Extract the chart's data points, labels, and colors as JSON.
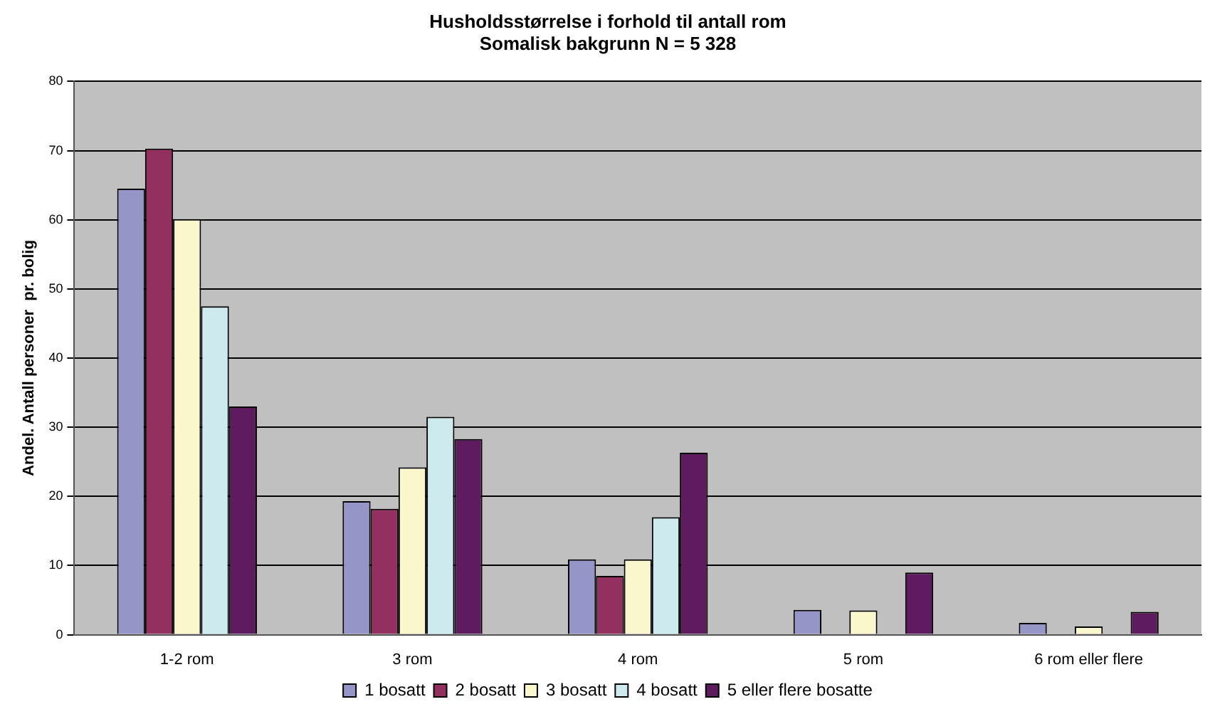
{
  "chart_data": {
    "type": "bar",
    "title": "Husholdsstørrelse i forhold til antall rom",
    "subtitle": "Somalisk bakgrunn N = 5 328",
    "ylabel": "Andel. Antall personer  pr. bolig",
    "categories": [
      "1-2 rom",
      "3 rom",
      "4 rom",
      "5 rom",
      "6 rom eller flere"
    ],
    "series": [
      {
        "name": "1 bosatt",
        "color": "#9595c8",
        "values": [
          64.5,
          19.3,
          10.9,
          3.6,
          1.7
        ]
      },
      {
        "name": "2 bosatt",
        "color": "#933060",
        "values": [
          70.3,
          18.2,
          8.5,
          0,
          0
        ]
      },
      {
        "name": "3 bosatt",
        "color": "#fbf7cd",
        "values": [
          60.1,
          24.2,
          10.9,
          3.5,
          1.2
        ]
      },
      {
        "name": "4 bosatt",
        "color": "#cdeaee",
        "values": [
          47.5,
          31.5,
          17,
          0,
          0
        ]
      },
      {
        "name": "5 eller flere bosatte",
        "color": "#5e1b5e",
        "values": [
          33,
          28.3,
          26.3,
          9,
          3.3
        ]
      }
    ],
    "ylim": [
      0,
      80
    ],
    "yticks": [
      0,
      10,
      20,
      30,
      40,
      50,
      60,
      70,
      80
    ],
    "grid": "y",
    "legend": "bottom"
  }
}
